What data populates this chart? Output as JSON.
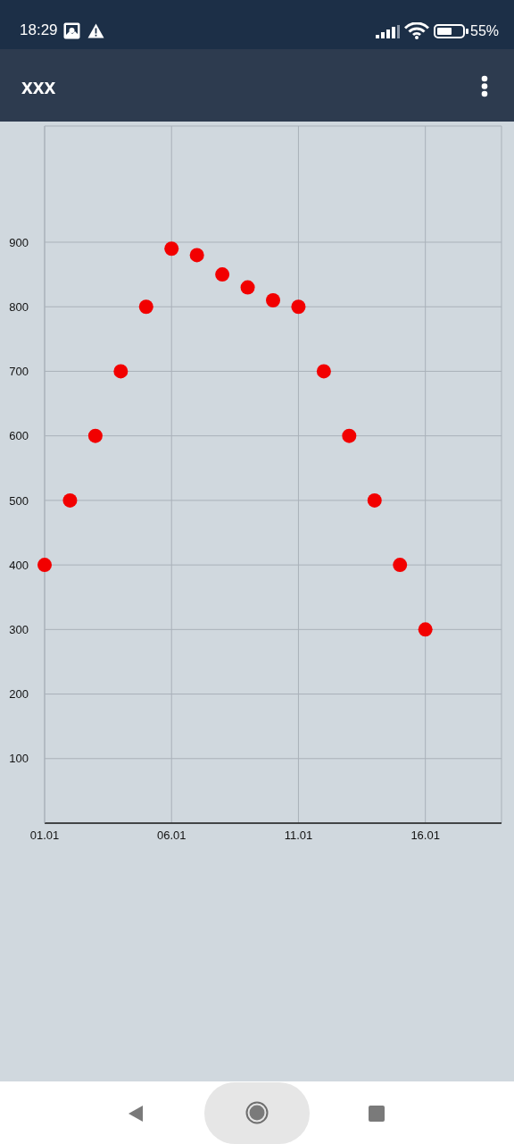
{
  "chart_data": {
    "type": "scatter",
    "title": "xxx",
    "annotations": [
      "18:29",
      "55%"
    ],
    "x": [
      "--01-01",
      "--01-02",
      "--01-03",
      "--01-04",
      "--01-05",
      "--01-06",
      "--01-07",
      "--01-08",
      "--01-09",
      "--01-10",
      "--01-11",
      "--01-12",
      "--01-13",
      "--01-14",
      "--01-15",
      "--01-16"
    ],
    "values": [
      400,
      500,
      600,
      700,
      800,
      890,
      880,
      850,
      830,
      810,
      800,
      700,
      600,
      500,
      400,
      300
    ],
    "color": "#f20000",
    "marker": "circle",
    "xlim": [
      "--01-01",
      "--01-19"
    ],
    "xticks": [
      {
        "value": "--01-01",
        "label": "01.01"
      },
      {
        "value": "--01-06",
        "label": "06.01"
      },
      {
        "value": "--01-11",
        "label": "11.01"
      },
      {
        "value": "--01-16",
        "label": "16.01"
      }
    ],
    "ylim": [
      0,
      1080
    ],
    "yticks": [
      100,
      200,
      300,
      400,
      500,
      600,
      700,
      800,
      900
    ],
    "grid": true
  }
}
